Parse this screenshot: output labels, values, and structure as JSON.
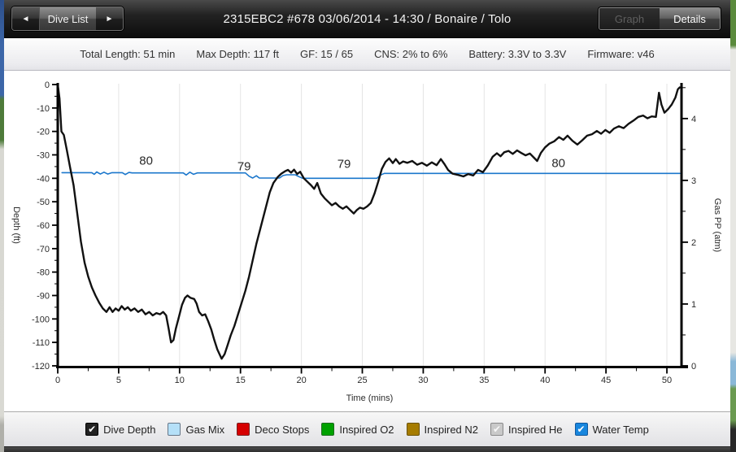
{
  "nav": {
    "prev_icon": "◄",
    "next_icon": "►",
    "dive_list_label": "Dive List"
  },
  "title": "2315EBC2 #678 03/06/2014 - 14:30 / Bonaire / Tolo",
  "view_toggle": {
    "graph_label": "Graph",
    "details_label": "Details"
  },
  "stats": [
    {
      "label": "Total Length",
      "value": "51 min"
    },
    {
      "label": "Max Depth",
      "value": "117 ft"
    },
    {
      "label": "GF",
      "value": "15 / 65"
    },
    {
      "label": "CNS",
      "value": "2% to 6%"
    },
    {
      "label": "Battery",
      "value": "3.3V to 3.3V"
    },
    {
      "label": "Firmware",
      "value": "v46"
    }
  ],
  "chart_data": {
    "type": "line",
    "xlabel": "Time (mins)",
    "ylabel_left": "Depth (ft)",
    "ylabel_right": "Gas PP (atm)",
    "x_range": [
      0,
      51.2
    ],
    "x_major_ticks": [
      0,
      5,
      10,
      15,
      20,
      25,
      30,
      35,
      40,
      45,
      50
    ],
    "x_minor_step": 2.5,
    "y_left_range": [
      -120,
      0
    ],
    "y_left_major_step": 10,
    "y_left_minor_step": 5,
    "y_right_range": [
      0,
      4.55
    ],
    "y_right_major_ticks": [
      0,
      1,
      2,
      3,
      4
    ],
    "y_right_minor_step": 0.5,
    "grid": "vertical-only",
    "grid_color": "#e4e4e4",
    "series": [
      {
        "name": "Water Temp",
        "color": "#1b77cc",
        "width": 1.6,
        "axis": "depth",
        "points": [
          [
            0.35,
            -37.6
          ],
          [
            2.8,
            -37.6
          ],
          [
            3.0,
            -38.3
          ],
          [
            3.2,
            -37.3
          ],
          [
            3.5,
            -38.2
          ],
          [
            3.8,
            -37.4
          ],
          [
            4.1,
            -38.2
          ],
          [
            4.45,
            -37.6
          ],
          [
            5.3,
            -37.6
          ],
          [
            5.55,
            -38.4
          ],
          [
            5.85,
            -37.5
          ],
          [
            6.1,
            -37.7
          ],
          [
            10.3,
            -37.7
          ],
          [
            10.55,
            -38.6
          ],
          [
            10.85,
            -37.4
          ],
          [
            11.15,
            -38.3
          ],
          [
            11.45,
            -37.7
          ],
          [
            15.4,
            -37.7
          ],
          [
            15.7,
            -39.1
          ],
          [
            16.0,
            -39.9
          ],
          [
            16.3,
            -38.9
          ],
          [
            16.55,
            -39.9
          ],
          [
            18.2,
            -39.9
          ],
          [
            18.5,
            -38.8
          ],
          [
            18.8,
            -38.5
          ],
          [
            19.5,
            -38.5
          ],
          [
            19.8,
            -39.3
          ],
          [
            20.1,
            -40.0
          ],
          [
            26.2,
            -40.0
          ],
          [
            26.5,
            -38.6
          ],
          [
            26.8,
            -37.9
          ],
          [
            51.05,
            -37.9
          ]
        ]
      },
      {
        "name": "Dive Depth",
        "color": "#111111",
        "width": 2.4,
        "axis": "depth",
        "points": [
          [
            0,
            0
          ],
          [
            0.15,
            -6
          ],
          [
            0.3,
            -20
          ],
          [
            0.5,
            -21.5
          ],
          [
            0.75,
            -28
          ],
          [
            1.0,
            -35
          ],
          [
            1.3,
            -43
          ],
          [
            1.6,
            -55
          ],
          [
            1.9,
            -67
          ],
          [
            2.2,
            -76
          ],
          [
            2.5,
            -82
          ],
          [
            2.8,
            -86.5
          ],
          [
            3.1,
            -90
          ],
          [
            3.4,
            -93
          ],
          [
            3.7,
            -95.5
          ],
          [
            4.0,
            -97
          ],
          [
            4.25,
            -95
          ],
          [
            4.5,
            -97
          ],
          [
            4.75,
            -95.5
          ],
          [
            5.0,
            -96.5
          ],
          [
            5.25,
            -94.5
          ],
          [
            5.5,
            -96
          ],
          [
            5.75,
            -95
          ],
          [
            6.0,
            -96.5
          ],
          [
            6.3,
            -95.5
          ],
          [
            6.6,
            -97
          ],
          [
            6.9,
            -96
          ],
          [
            7.2,
            -98
          ],
          [
            7.5,
            -97
          ],
          [
            7.8,
            -98.5
          ],
          [
            8.1,
            -97.5
          ],
          [
            8.4,
            -98
          ],
          [
            8.65,
            -97
          ],
          [
            8.9,
            -98.5
          ],
          [
            9.1,
            -104
          ],
          [
            9.3,
            -110
          ],
          [
            9.5,
            -109
          ],
          [
            9.7,
            -104
          ],
          [
            9.95,
            -99
          ],
          [
            10.2,
            -94
          ],
          [
            10.45,
            -91
          ],
          [
            10.65,
            -90
          ],
          [
            10.9,
            -91
          ],
          [
            11.2,
            -91.5
          ],
          [
            11.4,
            -93.5
          ],
          [
            11.6,
            -97
          ],
          [
            11.85,
            -98.5
          ],
          [
            12.1,
            -98
          ],
          [
            12.35,
            -101
          ],
          [
            12.6,
            -104.5
          ],
          [
            12.85,
            -109
          ],
          [
            13.1,
            -113
          ],
          [
            13.45,
            -117
          ],
          [
            13.7,
            -115
          ],
          [
            13.95,
            -111
          ],
          [
            14.2,
            -107
          ],
          [
            14.5,
            -103
          ],
          [
            14.8,
            -98
          ],
          [
            15.1,
            -93
          ],
          [
            15.4,
            -88
          ],
          [
            15.7,
            -82
          ],
          [
            16.0,
            -75
          ],
          [
            16.3,
            -68
          ],
          [
            16.6,
            -62
          ],
          [
            17.0,
            -54
          ],
          [
            17.4,
            -46
          ],
          [
            17.7,
            -42
          ],
          [
            18.05,
            -39.5
          ],
          [
            18.35,
            -38
          ],
          [
            18.65,
            -37
          ],
          [
            18.9,
            -36.4
          ],
          [
            19.15,
            -37.6
          ],
          [
            19.4,
            -36.3
          ],
          [
            19.65,
            -38.2
          ],
          [
            19.9,
            -37.2
          ],
          [
            20.2,
            -40
          ],
          [
            20.5,
            -41.5
          ],
          [
            20.8,
            -43
          ],
          [
            21.05,
            -44.5
          ],
          [
            21.3,
            -42
          ],
          [
            21.6,
            -46.5
          ],
          [
            21.9,
            -48.5
          ],
          [
            22.2,
            -50
          ],
          [
            22.5,
            -51.5
          ],
          [
            22.8,
            -50.5
          ],
          [
            23.1,
            -52
          ],
          [
            23.4,
            -53
          ],
          [
            23.7,
            -52
          ],
          [
            24.0,
            -53.5
          ],
          [
            24.3,
            -55
          ],
          [
            24.55,
            -53.5
          ],
          [
            24.8,
            -52.5
          ],
          [
            25.1,
            -53
          ],
          [
            25.4,
            -52
          ],
          [
            25.7,
            -50.5
          ],
          [
            26.0,
            -46.5
          ],
          [
            26.3,
            -41.5
          ],
          [
            26.6,
            -36
          ],
          [
            26.9,
            -33
          ],
          [
            27.2,
            -31.5
          ],
          [
            27.5,
            -33.5
          ],
          [
            27.75,
            -31.8
          ],
          [
            28.05,
            -33.8
          ],
          [
            28.35,
            -32.8
          ],
          [
            28.7,
            -33.4
          ],
          [
            29.1,
            -32.6
          ],
          [
            29.5,
            -34.2
          ],
          [
            29.9,
            -33.4
          ],
          [
            30.3,
            -34.6
          ],
          [
            30.7,
            -33.2
          ],
          [
            31.1,
            -34.4
          ],
          [
            31.45,
            -31.8
          ],
          [
            31.75,
            -34
          ],
          [
            32.05,
            -36.5
          ],
          [
            32.4,
            -38
          ],
          [
            32.9,
            -38.6
          ],
          [
            33.3,
            -39.2
          ],
          [
            33.7,
            -38.2
          ],
          [
            34.1,
            -38.8
          ],
          [
            34.5,
            -36.4
          ],
          [
            34.9,
            -37.4
          ],
          [
            35.3,
            -34.5
          ],
          [
            35.7,
            -30.8
          ],
          [
            36.05,
            -29.3
          ],
          [
            36.35,
            -30.6
          ],
          [
            36.65,
            -28.9
          ],
          [
            37.0,
            -28.3
          ],
          [
            37.35,
            -29.6
          ],
          [
            37.7,
            -28.1
          ],
          [
            38.05,
            -29.2
          ],
          [
            38.4,
            -30.2
          ],
          [
            38.75,
            -29.4
          ],
          [
            39.05,
            -31
          ],
          [
            39.35,
            -32.6
          ],
          [
            39.65,
            -29.2
          ],
          [
            40.0,
            -26.8
          ],
          [
            40.35,
            -25.2
          ],
          [
            40.75,
            -24.2
          ],
          [
            41.15,
            -22.4
          ],
          [
            41.5,
            -23.6
          ],
          [
            41.85,
            -21.8
          ],
          [
            42.25,
            -24
          ],
          [
            42.65,
            -25.6
          ],
          [
            43.05,
            -23.8
          ],
          [
            43.45,
            -21.8
          ],
          [
            43.85,
            -21.2
          ],
          [
            44.25,
            -19.8
          ],
          [
            44.6,
            -21
          ],
          [
            44.95,
            -19.4
          ],
          [
            45.3,
            -20.6
          ],
          [
            45.65,
            -18.8
          ],
          [
            46.05,
            -17.8
          ],
          [
            46.45,
            -18.6
          ],
          [
            46.85,
            -16.8
          ],
          [
            47.25,
            -15.4
          ],
          [
            47.65,
            -13.8
          ],
          [
            48.05,
            -13.2
          ],
          [
            48.4,
            -14.4
          ],
          [
            48.75,
            -13.6
          ],
          [
            49.1,
            -13.8
          ],
          [
            49.35,
            -3.5
          ],
          [
            49.55,
            -8.5
          ],
          [
            49.8,
            -12
          ],
          [
            50.1,
            -10.5
          ],
          [
            50.4,
            -8.5
          ],
          [
            50.7,
            -5.5
          ],
          [
            50.9,
            -2
          ],
          [
            51.05,
            -1.2
          ]
        ]
      }
    ],
    "annotations": {
      "color": "#1b24d9",
      "items": [
        {
          "text": "80",
          "t": 7.25,
          "ft": -34.2
        },
        {
          "text": "79",
          "t": 15.3,
          "ft": -36.6
        },
        {
          "text": "79",
          "t": 23.5,
          "ft": -35.5
        },
        {
          "text": "80",
          "t": 41.1,
          "ft": -35.2
        }
      ]
    }
  },
  "legend": {
    "check_glyph": "✔",
    "items": [
      {
        "label": "Dive Depth",
        "color": "#222222",
        "border": "#000000",
        "checked": true,
        "check_color": "#ffffff"
      },
      {
        "label": "Gas Mix",
        "color": "#b5e0f8",
        "border": "#667788",
        "checked": false
      },
      {
        "label": "Deco Stops",
        "color": "#d60000",
        "border": "#7a2020",
        "checked": false
      },
      {
        "label": "Inspired O2",
        "color": "#00a100",
        "border": "#1f6b1f",
        "checked": false
      },
      {
        "label": "Inspired N2",
        "color": "#a67c00",
        "border": "#6b5200",
        "checked": false
      },
      {
        "label": "Inspired He",
        "color": "#c9c9c9",
        "border": "#8a8a8a",
        "checked": true,
        "check_color": "#f8f8f8"
      },
      {
        "label": "Water Temp",
        "color": "#1886dd",
        "border": "#11589d",
        "checked": true,
        "check_color": "#ffffff"
      }
    ]
  }
}
